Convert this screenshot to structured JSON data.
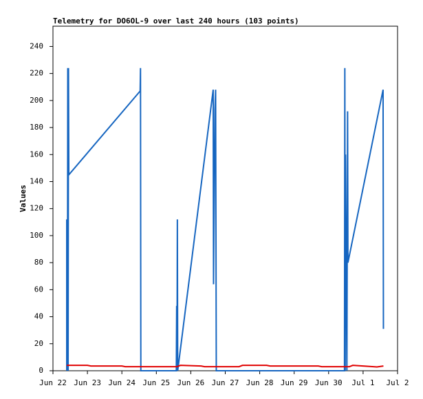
{
  "chart_data": {
    "type": "line",
    "title": "Telemetry for DO6OL-9 over last 240 hours (103 points)",
    "y_label": "Values",
    "xlim": [
      0,
      10
    ],
    "ylim": [
      0,
      255
    ],
    "xticks": [
      {
        "value": 0,
        "label": "Jun 22"
      },
      {
        "value": 1,
        "label": "Jun 23"
      },
      {
        "value": 2,
        "label": "Jun 24"
      },
      {
        "value": 3,
        "label": "Jun 25"
      },
      {
        "value": 4,
        "label": "Jun 26"
      },
      {
        "value": 5,
        "label": "Jun 27"
      },
      {
        "value": 6,
        "label": "Jun 28"
      },
      {
        "value": 7,
        "label": "Jun 29"
      },
      {
        "value": 8,
        "label": "Jun 30"
      },
      {
        "value": 9,
        "label": "Jul 1"
      },
      {
        "value": 10,
        "label": "Jul 2"
      }
    ],
    "yticks": [
      0,
      20,
      40,
      60,
      80,
      100,
      120,
      140,
      160,
      180,
      200,
      220,
      240
    ],
    "grid": false,
    "series": [
      {
        "color": "#1565c0",
        "x": [
          0.4,
          0.4,
          0.42,
          0.43,
          0.44,
          0.45,
          0.46,
          2.53,
          2.54,
          2.55,
          3.58,
          3.59,
          3.6,
          3.61,
          3.62,
          4.65,
          4.66,
          4.7,
          4.72,
          4.74,
          8.46,
          8.47,
          8.48,
          8.49,
          8.53,
          8.55,
          8.56,
          9.58,
          9.59
        ],
        "values": [
          0,
          112,
          0,
          224,
          0,
          224,
          145,
          207,
          224,
          0,
          0,
          48,
          0,
          112,
          0,
          208,
          64,
          193,
          208,
          0,
          0,
          224,
          0,
          160,
          0,
          192,
          80,
          208,
          31
        ]
      },
      {
        "color": "#e00000",
        "x": [
          0.4,
          1.0,
          1.1,
          2.0,
          2.1,
          3.6,
          3.7,
          4.3,
          4.4,
          5.4,
          5.5,
          6.2,
          6.3,
          7.7,
          7.8,
          8.6,
          8.7,
          9.0,
          9.3,
          9.4,
          9.59
        ],
        "values": [
          4,
          4,
          3.5,
          3.5,
          3,
          3,
          4,
          3.5,
          3,
          3,
          4,
          4,
          3.5,
          3.5,
          3,
          3,
          4,
          3.5,
          3,
          2.8,
          3.5
        ]
      }
    ]
  }
}
